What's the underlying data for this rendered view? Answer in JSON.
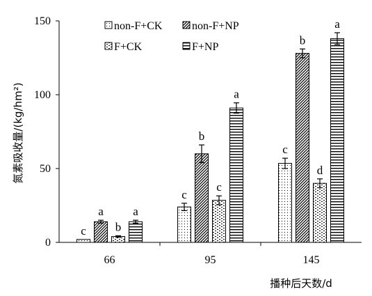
{
  "chart_data": {
    "type": "bar",
    "categories": [
      "66",
      "95",
      "145"
    ],
    "xlabel": "播种后天数/d",
    "ylabel": "氮素吸收量/(kg/hm²)",
    "ylim": [
      0,
      150
    ],
    "yticks": [
      "0",
      "50",
      "100",
      "150"
    ],
    "grid": false,
    "legend_position": "top-left-inside",
    "series": [
      {
        "name": "non-F+CK",
        "pattern": "dots",
        "values": [
          2,
          24,
          53.5
        ],
        "errors": [
          0,
          2.5,
          3.5
        ],
        "letters": [
          "c",
          "c",
          "c"
        ]
      },
      {
        "name": "non-F+NP",
        "pattern": "diagonal",
        "values": [
          14,
          60,
          128
        ],
        "errors": [
          1,
          6,
          3
        ],
        "letters": [
          "a",
          "b",
          "b"
        ]
      },
      {
        "name": "F+CK",
        "pattern": "dashes",
        "values": [
          4,
          28.5,
          40
        ],
        "errors": [
          0.5,
          3,
          3
        ],
        "letters": [
          "b",
          "c",
          "d"
        ]
      },
      {
        "name": "F+NP",
        "pattern": "horizontal",
        "values": [
          14,
          91,
          138
        ],
        "errors": [
          1,
          3.5,
          4
        ],
        "letters": [
          "a",
          "a",
          "a"
        ]
      }
    ]
  }
}
